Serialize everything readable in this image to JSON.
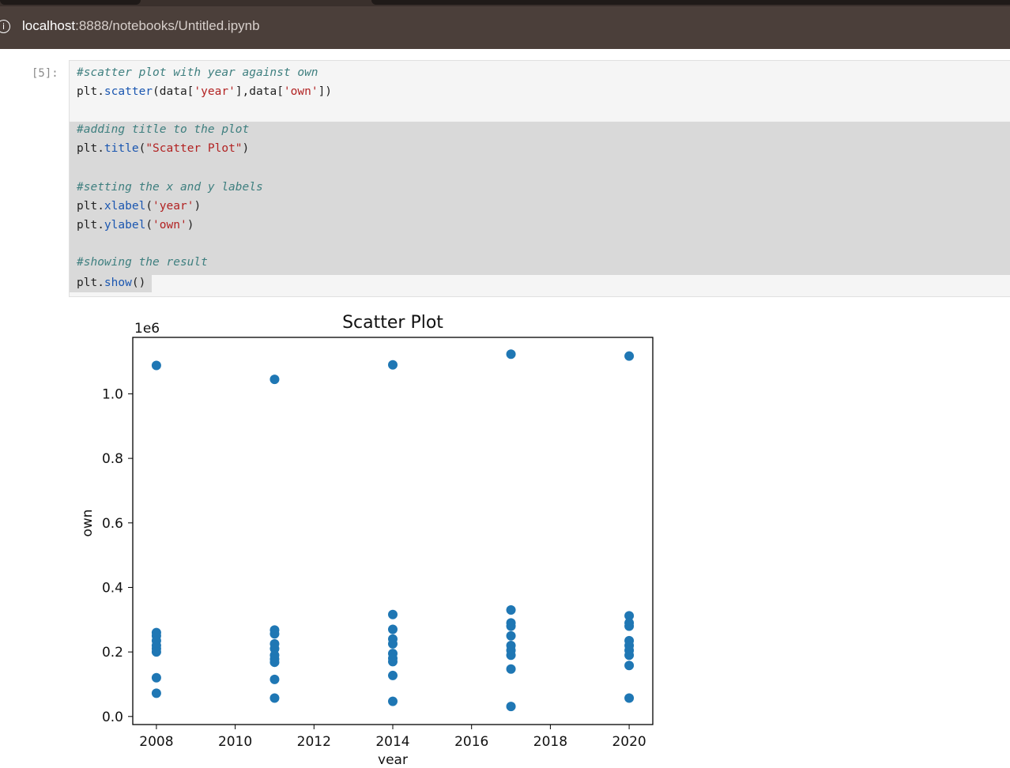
{
  "browser": {
    "url_host": "localhost",
    "url_rest": ":8888/notebooks/Untitled.ipynb",
    "info_icon": "info-icon"
  },
  "cell": {
    "prompt": "[5]:",
    "lines": [
      "#scatter plot with year against own",
      "plt.scatter(data['year'],data['own'])",
      "",
      "#adding title to the plot",
      "plt.title(\"Scatter Plot\")",
      "",
      "#setting the x and y labels",
      "plt.xlabel('year')",
      "plt.ylabel('own')",
      "",
      "#showing the result",
      "plt.show()"
    ]
  },
  "chart_data": {
    "type": "scatter",
    "title": "Scatter Plot",
    "xlabel": "year",
    "ylabel": "own",
    "offset_text": "1e6",
    "xlim": [
      2007.4,
      2020.6
    ],
    "ylim": [
      -0.025,
      1.175
    ],
    "xticks": [
      "2008",
      "2010",
      "2012",
      "2014",
      "2016",
      "2018",
      "2020"
    ],
    "yticks": [
      "0.0",
      "0.2",
      "0.4",
      "0.6",
      "0.8",
      "1.0"
    ],
    "color": "#1f77b4",
    "points": [
      {
        "x": 2008,
        "y": 1.088
      },
      {
        "x": 2008,
        "y": 0.26
      },
      {
        "x": 2008,
        "y": 0.25
      },
      {
        "x": 2008,
        "y": 0.235
      },
      {
        "x": 2008,
        "y": 0.22
      },
      {
        "x": 2008,
        "y": 0.21
      },
      {
        "x": 2008,
        "y": 0.2
      },
      {
        "x": 2008,
        "y": 0.12
      },
      {
        "x": 2008,
        "y": 0.072
      },
      {
        "x": 2011,
        "y": 1.045
      },
      {
        "x": 2011,
        "y": 0.268
      },
      {
        "x": 2011,
        "y": 0.256
      },
      {
        "x": 2011,
        "y": 0.225
      },
      {
        "x": 2011,
        "y": 0.21
      },
      {
        "x": 2011,
        "y": 0.19
      },
      {
        "x": 2011,
        "y": 0.178
      },
      {
        "x": 2011,
        "y": 0.168
      },
      {
        "x": 2011,
        "y": 0.115
      },
      {
        "x": 2011,
        "y": 0.057
      },
      {
        "x": 2014,
        "y": 1.09
      },
      {
        "x": 2014,
        "y": 0.316
      },
      {
        "x": 2014,
        "y": 0.27
      },
      {
        "x": 2014,
        "y": 0.24
      },
      {
        "x": 2014,
        "y": 0.225
      },
      {
        "x": 2014,
        "y": 0.195
      },
      {
        "x": 2014,
        "y": 0.18
      },
      {
        "x": 2014,
        "y": 0.17
      },
      {
        "x": 2014,
        "y": 0.127
      },
      {
        "x": 2014,
        "y": 0.047
      },
      {
        "x": 2017,
        "y": 1.123
      },
      {
        "x": 2017,
        "y": 0.33
      },
      {
        "x": 2017,
        "y": 0.29
      },
      {
        "x": 2017,
        "y": 0.28
      },
      {
        "x": 2017,
        "y": 0.25
      },
      {
        "x": 2017,
        "y": 0.22
      },
      {
        "x": 2017,
        "y": 0.205
      },
      {
        "x": 2017,
        "y": 0.19
      },
      {
        "x": 2017,
        "y": 0.147
      },
      {
        "x": 2017,
        "y": 0.031
      },
      {
        "x": 2020,
        "y": 1.117
      },
      {
        "x": 2020,
        "y": 0.312
      },
      {
        "x": 2020,
        "y": 0.29
      },
      {
        "x": 2020,
        "y": 0.28
      },
      {
        "x": 2020,
        "y": 0.235
      },
      {
        "x": 2020,
        "y": 0.22
      },
      {
        "x": 2020,
        "y": 0.205
      },
      {
        "x": 2020,
        "y": 0.19
      },
      {
        "x": 2020,
        "y": 0.158
      },
      {
        "x": 2020,
        "y": 0.057
      }
    ]
  }
}
